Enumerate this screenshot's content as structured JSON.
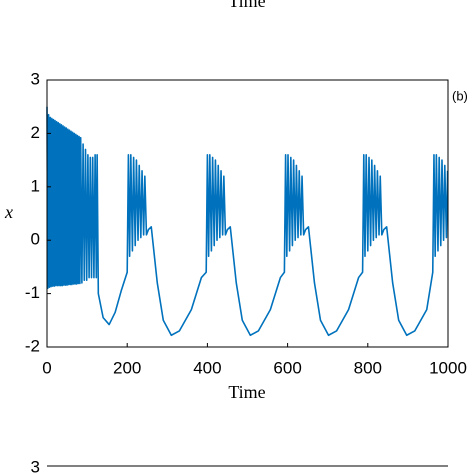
{
  "chart_data": [
    {
      "type": "line",
      "xlabel": "Time"
    },
    {
      "type": "line",
      "annotation": "(b)",
      "xlabel": "Time",
      "ylabel": "x",
      "xlim": [
        0,
        1000
      ],
      "xticks": [
        0,
        200,
        400,
        600,
        800,
        1000
      ],
      "ylim": [
        -2,
        3
      ],
      "yticks": [
        -2,
        -1,
        0,
        1,
        2,
        3
      ],
      "box": true,
      "series": [
        {
          "color": "#0072bd",
          "x": [
            0,
            2,
            4,
            6,
            8,
            10,
            12,
            14,
            16,
            18,
            20,
            22,
            24,
            26,
            28,
            30,
            32,
            34,
            36,
            38,
            40,
            42,
            44,
            46,
            48,
            50,
            52,
            54,
            56,
            58,
            60,
            62,
            64,
            66,
            68,
            70,
            72,
            74,
            76,
            78,
            80,
            82,
            84,
            87,
            90,
            93,
            96,
            99,
            102,
            105,
            108,
            111,
            114,
            117,
            120,
            123,
            125,
            128,
            140,
            155,
            170,
            185,
            200,
            203,
            206,
            209,
            213,
            216,
            220,
            223,
            227,
            230,
            234,
            237,
            241,
            244,
            248,
            253,
            260,
            275,
            290,
            310,
            330,
            360,
            385,
            397,
            400,
            403,
            406,
            410,
            413,
            417,
            420,
            424,
            427,
            431,
            434,
            438,
            441,
            445,
            450,
            457,
            472,
            487,
            507,
            527,
            557,
            582,
            592,
            595,
            598,
            601,
            605,
            608,
            612,
            615,
            619,
            622,
            626,
            629,
            633,
            636,
            640,
            645,
            652,
            667,
            682,
            702,
            722,
            752,
            777,
            787,
            790,
            793,
            796,
            800,
            803,
            807,
            810,
            814,
            817,
            821,
            824,
            828,
            831,
            835,
            840,
            847,
            862,
            877,
            897,
            917,
            947,
            962,
            965,
            968,
            971,
            975,
            978,
            982,
            985,
            989,
            992,
            996,
            999
          ],
          "values": [
            2.5,
            -0.9,
            2.35,
            -0.88,
            2.3,
            -0.87,
            2.28,
            -0.86,
            2.26,
            -0.86,
            2.24,
            -0.85,
            2.22,
            -0.85,
            2.2,
            -0.85,
            2.18,
            -0.85,
            2.16,
            -0.85,
            2.14,
            -0.84,
            2.12,
            -0.84,
            2.1,
            -0.84,
            2.08,
            -0.83,
            2.06,
            -0.83,
            2.04,
            -0.83,
            2.02,
            -0.82,
            2.0,
            -0.82,
            1.98,
            -0.82,
            1.96,
            -0.81,
            1.94,
            -0.81,
            1.92,
            -0.8,
            1.8,
            -0.75,
            1.7,
            -0.75,
            1.6,
            -0.7,
            1.55,
            -0.7,
            1.55,
            -0.7,
            1.6,
            -0.7,
            1.6,
            -1.0,
            -1.45,
            -1.58,
            -1.35,
            -0.95,
            -0.6,
            1.6,
            -0.3,
            1.6,
            -0.2,
            1.55,
            -0.1,
            1.5,
            0,
            1.4,
            0.05,
            1.3,
            0.1,
            1.2,
            0.1,
            0.2,
            0.25,
            -0.8,
            -1.5,
            -1.78,
            -1.7,
            -1.3,
            -0.7,
            -0.6,
            1.6,
            -0.3,
            1.6,
            -0.2,
            1.55,
            -0.1,
            1.5,
            0,
            1.4,
            0.05,
            1.3,
            0.1,
            1.2,
            0.1,
            0.2,
            0.25,
            -0.8,
            -1.5,
            -1.78,
            -1.7,
            -1.3,
            -0.7,
            -0.6,
            1.6,
            -0.3,
            1.6,
            -0.2,
            1.55,
            -0.1,
            1.5,
            0,
            1.4,
            0.05,
            1.3,
            0.1,
            1.2,
            0.1,
            0.2,
            0.25,
            -0.8,
            -1.5,
            -1.78,
            -1.7,
            -1.3,
            -0.7,
            -0.6,
            1.6,
            -0.3,
            1.6,
            -0.2,
            1.55,
            -0.1,
            1.5,
            0,
            1.4,
            0.05,
            1.3,
            0.1,
            1.2,
            0.1,
            0.2,
            0.25,
            -0.8,
            -1.5,
            -1.78,
            -1.7,
            -1.3,
            -0.6,
            1.6,
            -0.3,
            1.6,
            -0.2,
            1.55,
            -0.1,
            1.5,
            0,
            1.4,
            0.05,
            1.3
          ]
        }
      ]
    },
    {
      "type": "line",
      "yticks": [
        3
      ]
    }
  ]
}
